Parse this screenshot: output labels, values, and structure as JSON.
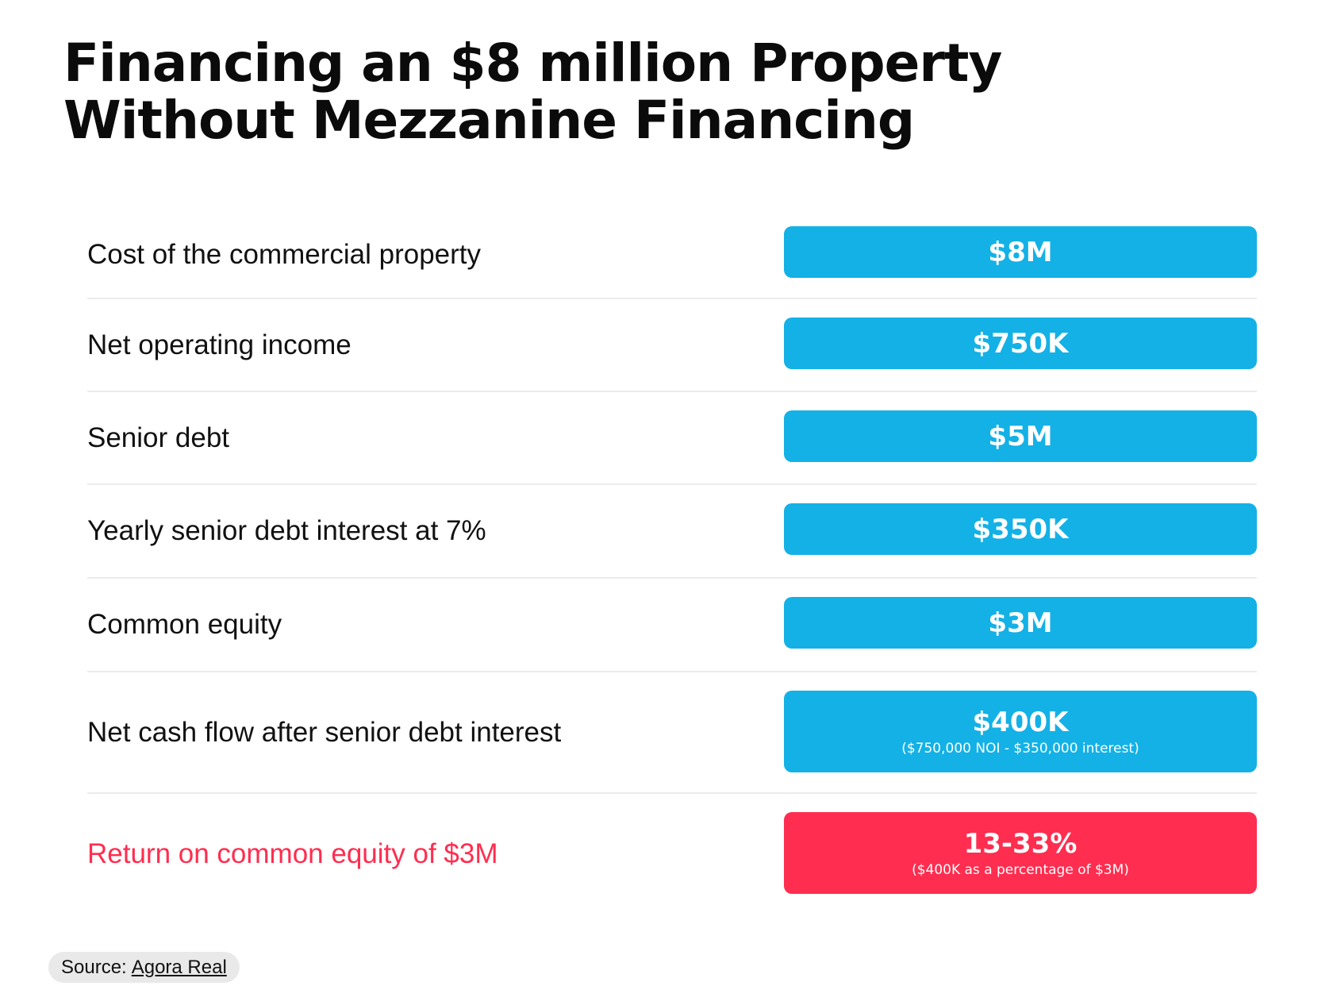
{
  "title": {
    "line1": "Financing an $8 million Property",
    "line2": "Without Mezzanine Financing"
  },
  "rows": [
    {
      "label": "Cost of the commercial property",
      "value": "$8M"
    },
    {
      "label": "Net operating income",
      "value": "$750K"
    },
    {
      "label": "Senior debt",
      "value": "$5M"
    },
    {
      "label": "Yearly senior debt interest at 7%",
      "value": "$350K"
    },
    {
      "label": "Common equity",
      "value": "$3M"
    },
    {
      "label": "Net cash flow after senior debt interest",
      "value": "$400K",
      "note": "($750,000 NOI - $350,000 interest)"
    },
    {
      "label": "Return on common equity of $3M",
      "value": "13-33%",
      "note": "($400K as a percentage of $3M)"
    }
  ],
  "source": {
    "prefix": "Source:",
    "link_text": "Agora Real"
  },
  "colors": {
    "accent_blue": "#13b1e6",
    "accent_red": "#ff2d4f"
  }
}
